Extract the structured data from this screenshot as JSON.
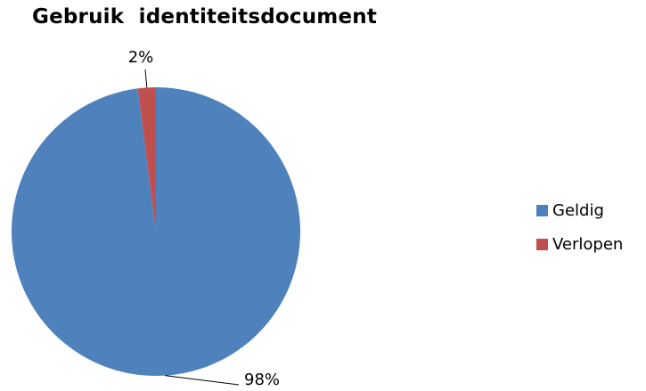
{
  "chart_data": {
    "type": "pie",
    "title": "Gebruik  identiteitsdocument",
    "categories": [
      "Geldig",
      "Verlopen"
    ],
    "values": [
      98,
      2
    ],
    "data_labels": [
      "98%",
      "2%"
    ],
    "colors": [
      "#4F81BD",
      "#C0504D"
    ],
    "legend": "right"
  }
}
